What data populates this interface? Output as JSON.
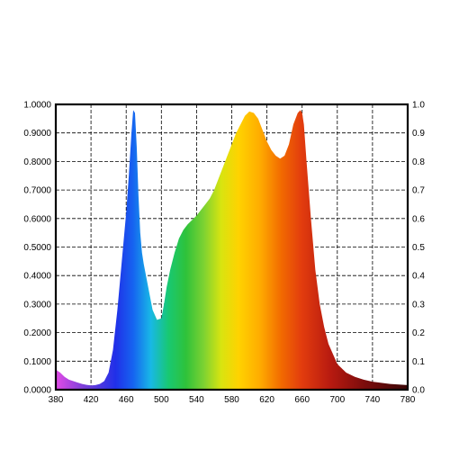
{
  "chart_data": {
    "type": "area",
    "title": "",
    "xlabel": "",
    "ylabel": "",
    "xlim": [
      380,
      780
    ],
    "ylim": [
      0,
      1
    ],
    "grid": true,
    "x_ticks": [
      "380",
      "420",
      "460",
      "500",
      "540",
      "580",
      "620",
      "660",
      "700",
      "740",
      "780"
    ],
    "y_ticks_left": [
      "0.0000",
      "0.1000",
      "0.2000",
      "0.3000",
      "0.4000",
      "0.5000",
      "0.6000",
      "0.7000",
      "0.8000",
      "0.9000",
      "1.0000"
    ],
    "y_ticks_right": [
      "0.0",
      "0.1",
      "0.2",
      "0.3",
      "0.4",
      "0.5",
      "0.6",
      "0.7",
      "0.8",
      "0.9",
      "1.0"
    ],
    "fill": "spectral wavelength colors",
    "series": [
      {
        "x": [
          380,
          385,
          390,
          395,
          400,
          405,
          410,
          415,
          420,
          425,
          430,
          435,
          440,
          445,
          450,
          455,
          460,
          463,
          466,
          468,
          470,
          472,
          474,
          476,
          478,
          480,
          485,
          490,
          495,
          500,
          503,
          506,
          510,
          515,
          520,
          525,
          530,
          535,
          540,
          545,
          550,
          555,
          560,
          565,
          570,
          575,
          580,
          585,
          590,
          595,
          600,
          605,
          610,
          615,
          620,
          625,
          630,
          635,
          640,
          645,
          650,
          655,
          658,
          660,
          662,
          665,
          670,
          675,
          680,
          685,
          690,
          700,
          710,
          720,
          730,
          740,
          750,
          760,
          770,
          780
        ],
        "y": [
          0.07,
          0.06,
          0.045,
          0.035,
          0.03,
          0.025,
          0.02,
          0.017,
          0.015,
          0.016,
          0.02,
          0.03,
          0.06,
          0.14,
          0.28,
          0.45,
          0.62,
          0.75,
          0.9,
          0.98,
          0.97,
          0.85,
          0.68,
          0.55,
          0.48,
          0.44,
          0.36,
          0.28,
          0.245,
          0.25,
          0.3,
          0.36,
          0.42,
          0.48,
          0.53,
          0.56,
          0.58,
          0.595,
          0.61,
          0.63,
          0.65,
          0.67,
          0.7,
          0.74,
          0.78,
          0.82,
          0.86,
          0.9,
          0.93,
          0.96,
          0.975,
          0.97,
          0.95,
          0.91,
          0.87,
          0.84,
          0.82,
          0.81,
          0.82,
          0.86,
          0.93,
          0.97,
          0.98,
          0.97,
          0.93,
          0.8,
          0.6,
          0.42,
          0.3,
          0.22,
          0.16,
          0.09,
          0.06,
          0.045,
          0.035,
          0.028,
          0.024,
          0.02,
          0.018,
          0.016
        ]
      }
    ]
  }
}
